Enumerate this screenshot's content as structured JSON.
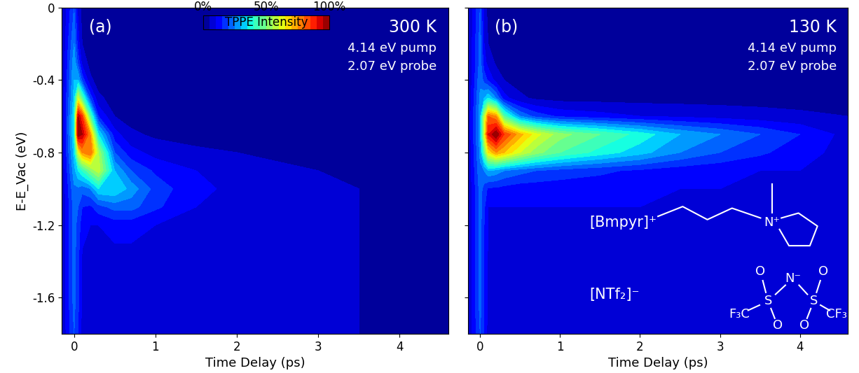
{
  "chart_data": [
    {
      "type": "heatmap",
      "color": "jet",
      "xlabel": "Time Delay (ps)",
      "ylabel": "E-E_Vac (eV)",
      "annotations": [
        {
          "text": "(a)"
        },
        {
          "text": "300 K"
        },
        {
          "text": "4.14 eV pump"
        },
        {
          "text": "2.07 eV probe"
        }
      ],
      "xlim": [
        -0.15,
        4.6
      ],
      "xticks": [
        0,
        1,
        2,
        3,
        4
      ],
      "ylim": [
        -1.8,
        0
      ],
      "yticks": [
        -1.6,
        -1.2,
        -0.8,
        -0.4,
        0
      ],
      "colorbar": {
        "label": "TPPE Intensity",
        "range": [
          0,
          100
        ],
        "ticks": [
          {
            "value": 0,
            "label": "0%"
          },
          {
            "value": 50,
            "label": "50%"
          },
          {
            "value": 100,
            "label": "100%"
          }
        ]
      },
      "x": [
        -0.15,
        0,
        0.05,
        0.1,
        0.2,
        0.3,
        0.5,
        0.7,
        1.0,
        1.5,
        2.0,
        2.5,
        3.0,
        3.5,
        4.0,
        4.6
      ],
      "y": [
        -1.8,
        -1.6,
        -1.4,
        -1.2,
        -1.1,
        -1.0,
        -0.9,
        -0.8,
        -0.7,
        -0.6,
        -0.5,
        -0.4,
        -0.3,
        -0.2,
        0
      ],
      "values": [
        [
          5,
          20,
          15,
          8,
          6,
          6,
          6,
          6,
          6,
          6,
          6,
          6,
          6,
          5,
          5,
          5
        ],
        [
          5,
          22,
          16,
          9,
          7,
          7,
          7,
          7,
          7,
          6,
          6,
          6,
          6,
          5,
          5,
          5
        ],
        [
          5,
          22,
          16,
          9,
          8,
          8,
          8,
          8,
          8,
          7,
          6,
          6,
          6,
          5,
          5,
          5
        ],
        [
          5,
          22,
          18,
          12,
          10,
          10,
          12,
          12,
          10,
          8,
          7,
          6,
          6,
          5,
          5,
          5
        ],
        [
          5,
          22,
          20,
          15,
          14,
          18,
          22,
          22,
          16,
          10,
          8,
          7,
          6,
          5,
          5,
          5
        ],
        [
          5,
          24,
          24,
          22,
          25,
          35,
          35,
          28,
          18,
          11,
          9,
          7,
          6,
          5,
          5,
          5
        ],
        [
          5,
          28,
          35,
          40,
          50,
          58,
          30,
          20,
          14,
          10,
          8,
          6,
          5,
          4,
          4,
          4
        ],
        [
          5,
          32,
          60,
          75,
          80,
          55,
          20,
          12,
          8,
          6,
          5,
          4,
          3,
          3,
          3,
          3
        ],
        [
          5,
          35,
          100,
          95,
          75,
          35,
          12,
          6,
          4,
          3,
          3,
          3,
          2,
          2,
          2,
          2
        ],
        [
          5,
          35,
          95,
          85,
          45,
          15,
          5,
          3,
          2,
          2,
          2,
          2,
          2,
          2,
          2,
          2
        ],
        [
          5,
          32,
          60,
          45,
          18,
          6,
          3,
          2,
          2,
          2,
          2,
          2,
          2,
          2,
          2,
          2
        ],
        [
          4,
          30,
          30,
          18,
          6,
          3,
          2,
          2,
          2,
          2,
          2,
          2,
          2,
          2,
          2,
          2
        ],
        [
          4,
          28,
          18,
          8,
          3,
          2,
          2,
          2,
          2,
          2,
          2,
          2,
          2,
          2,
          2,
          2
        ],
        [
          4,
          25,
          12,
          5,
          2,
          2,
          2,
          2,
          2,
          2,
          2,
          2,
          2,
          2,
          2,
          2
        ],
        [
          4,
          20,
          8,
          3,
          2,
          2,
          2,
          2,
          2,
          2,
          2,
          2,
          2,
          2,
          2,
          2
        ]
      ]
    },
    {
      "type": "heatmap",
      "color": "jet",
      "tick_labels": "x",
      "xlabel": "Time Delay (ps)",
      "annotations": [
        {
          "text": "(b)"
        },
        {
          "text": "130 K"
        },
        {
          "text": "4.14 eV pump"
        },
        {
          "text": "2.07 eV probe"
        }
      ],
      "structures": [
        {
          "label": "[Bmpyr]⁺",
          "atoms": [
            "N⁺"
          ]
        },
        {
          "label": "[NTf₂]⁻",
          "atoms": [
            "O",
            "O",
            "O",
            "O",
            "N⁻",
            "S",
            "S",
            "F₃C",
            "CF₃"
          ]
        }
      ],
      "xlim": [
        -0.15,
        4.6
      ],
      "xticks": [
        0,
        1,
        2,
        3,
        4
      ],
      "ylim": [
        -1.8,
        0
      ],
      "yticks": [
        -1.6,
        -1.2,
        -0.8,
        -0.4,
        0
      ],
      "x": [
        -0.15,
        0,
        0.05,
        0.1,
        0.2,
        0.3,
        0.5,
        0.7,
        1.0,
        1.5,
        2.0,
        2.5,
        3.0,
        3.5,
        4.0,
        4.6
      ],
      "y": [
        -1.8,
        -1.6,
        -1.4,
        -1.2,
        -1.1,
        -1.0,
        -0.9,
        -0.8,
        -0.7,
        -0.6,
        -0.5,
        -0.4,
        -0.3,
        -0.2,
        0
      ],
      "values": [
        [
          5,
          20,
          14,
          8,
          7,
          7,
          7,
          7,
          7,
          7,
          7,
          7,
          7,
          7,
          7,
          7
        ],
        [
          5,
          22,
          15,
          9,
          8,
          8,
          8,
          8,
          8,
          8,
          8,
          8,
          8,
          8,
          8,
          8
        ],
        [
          5,
          22,
          15,
          9,
          8,
          8,
          8,
          8,
          8,
          8,
          8,
          8,
          8,
          8,
          8,
          8
        ],
        [
          5,
          22,
          15,
          10,
          9,
          9,
          9,
          9,
          9,
          9,
          9,
          9,
          9,
          8,
          8,
          8
        ],
        [
          5,
          22,
          16,
          10,
          10,
          10,
          10,
          10,
          10,
          10,
          10,
          9,
          9,
          8,
          8,
          8
        ],
        [
          5,
          22,
          18,
          14,
          14,
          13,
          12,
          12,
          12,
          12,
          11,
          10,
          10,
          9,
          9,
          8
        ],
        [
          5,
          24,
          25,
          30,
          28,
          25,
          22,
          20,
          18,
          16,
          14,
          12,
          11,
          10,
          10,
          8
        ],
        [
          5,
          26,
          45,
          65,
          75,
          70,
          60,
          52,
          45,
          38,
          32,
          25,
          20,
          16,
          12,
          8
        ],
        [
          5,
          28,
          60,
          90,
          100,
          85,
          72,
          62,
          52,
          45,
          38,
          30,
          25,
          20,
          15,
          8
        ],
        [
          5,
          28,
          55,
          80,
          75,
          45,
          25,
          18,
          14,
          12,
          10,
          9,
          8,
          7,
          6,
          5
        ],
        [
          5,
          26,
          30,
          35,
          25,
          12,
          6,
          4,
          3,
          3,
          3,
          3,
          3,
          3,
          3,
          3
        ],
        [
          4,
          24,
          18,
          14,
          8,
          5,
          3,
          2,
          2,
          2,
          2,
          2,
          2,
          2,
          2,
          2
        ],
        [
          4,
          22,
          12,
          8,
          4,
          3,
          2,
          2,
          2,
          2,
          2,
          2,
          2,
          2,
          2,
          2
        ],
        [
          4,
          22,
          10,
          5,
          3,
          2,
          2,
          2,
          2,
          2,
          2,
          2,
          2,
          2,
          2,
          2
        ],
        [
          4,
          20,
          8,
          3,
          2,
          2,
          2,
          2,
          2,
          2,
          2,
          2,
          2,
          2,
          2,
          2
        ]
      ]
    }
  ]
}
